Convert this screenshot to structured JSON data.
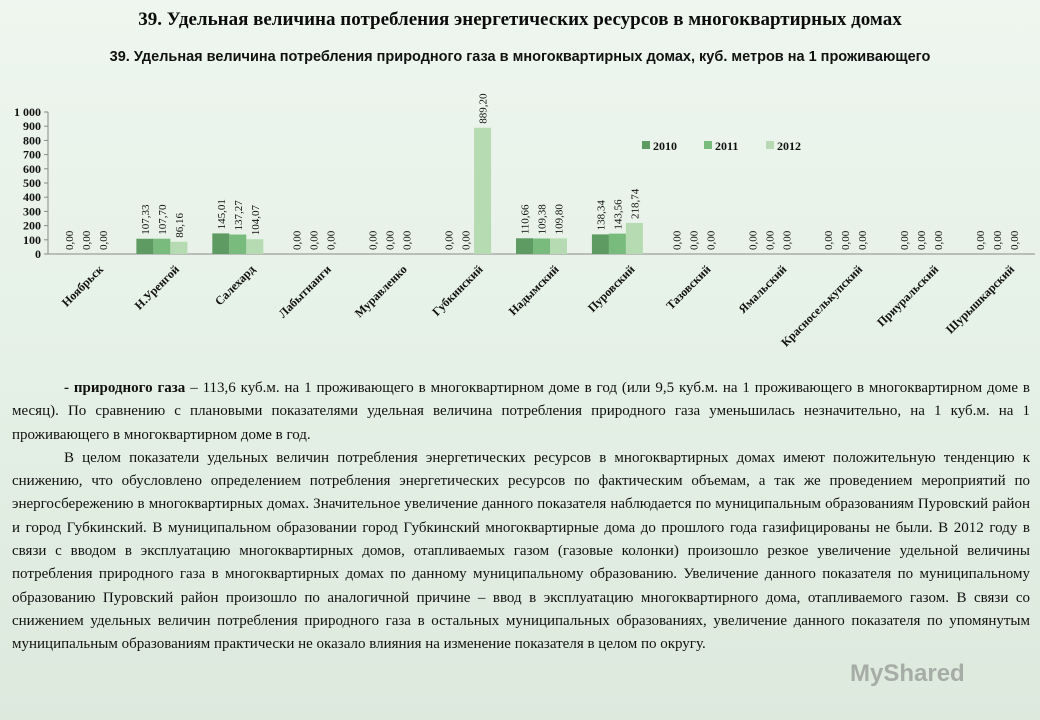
{
  "header": {
    "title": "39. Удельная величина потребления энергетических ресурсов в многоквартирных домах"
  },
  "chart_data": {
    "type": "bar",
    "title": "39. Удельная величина потребления природного газа в многоквартирных домах, куб. метров на 1 проживающего",
    "categories": [
      "Ноябрьск",
      "Н.Уренгой",
      "Салехард",
      "Лабытнанги",
      "Муравленко",
      "Губкинский",
      "Надымский",
      "Пуровский",
      "Тазовский",
      "Ямальский",
      "Красноселькупский",
      "Приуральский",
      "Шурышкарский"
    ],
    "series": [
      {
        "name": "2010",
        "color": "#5e9b62",
        "values": [
          0,
          107.33,
          145.01,
          0,
          0,
          0,
          110.66,
          138.34,
          0,
          0,
          0,
          0,
          0
        ]
      },
      {
        "name": "2011",
        "color": "#79bb7c",
        "values": [
          0,
          107.7,
          137.27,
          0,
          0,
          0,
          109.38,
          143.56,
          0,
          0,
          0,
          0,
          0
        ]
      },
      {
        "name": "2012",
        "color": "#b6dbb2",
        "values": [
          0,
          86.16,
          104.07,
          0,
          0,
          889.2,
          109.8,
          218.74,
          0,
          0,
          0,
          0,
          0
        ]
      }
    ],
    "labels": [
      [
        "0,00",
        "0,00",
        "0,00"
      ],
      [
        "107,33",
        "107,70",
        "86,16"
      ],
      [
        "145,01",
        "137,27",
        "104,07"
      ],
      [
        "0,00",
        "0,00",
        "0,00"
      ],
      [
        "0,00",
        "0,00",
        "0,00"
      ],
      [
        "0,00",
        "0,00",
        "889,20"
      ],
      [
        "110,66",
        "109,38",
        "109,80"
      ],
      [
        "138,34",
        "143,56",
        "218,74"
      ],
      [
        "0,00",
        "0,00",
        "0,00"
      ],
      [
        "0,00",
        "0,00",
        "0,00"
      ],
      [
        "0,00",
        "0,00",
        "0,00"
      ],
      [
        "0,00",
        "0,00",
        "0,00"
      ],
      [
        "0,00",
        "0,00",
        "0,00"
      ]
    ],
    "yticks": [
      0,
      100,
      200,
      300,
      400,
      500,
      600,
      700,
      800,
      900,
      1000
    ],
    "ytick_labels": [
      "0",
      "100",
      "200",
      "300",
      "400",
      "500",
      "600",
      "700",
      "800",
      "900",
      "1 000"
    ],
    "ylim": [
      0,
      1000
    ],
    "legend_position": "top-right",
    "grid": false
  },
  "body": {
    "p1_bold": "- природного газа",
    "p1_rest": " – 113,6 куб.м. на 1 проживающего в многоквартирном доме в год (или 9,5 куб.м. на 1 проживающего в многоквартирном доме в месяц). По сравнению с плановыми показателями удельная величина потребления природного газа уменьшилась незначительно, на 1 куб.м. на 1 проживающего в многоквартирном доме в год.",
    "p2": "В целом показатели удельных величин потребления энергетических ресурсов в многоквартирных домах имеют положительную тенденцию к снижению, что обусловлено определением потребления энергетических ресурсов по фактическим объемам, а так же проведением мероприятий по энергосбережению в многоквартирных домах. Значительное увеличение данного показателя наблюдается по муниципальным образованиям Пуровский район и город Губкинский. В муниципальном образовании город Губкинский многоквартирные дома до прошлого года газифицированы не были. В 2012 году в связи с вводом в эксплуатацию многоквартирных домов, отапливаемых газом (газовые колонки) произошло резкое увеличение удельной величины потребления природного газа в многоквартирных домах по данному муниципальному образованию. Увеличение данного показателя по муниципальному образованию Пуровский район произошло по аналогичной причине – ввод в эксплуатацию многоквартирного дома, отапливаемого газом. В связи со снижением удельных величин потребления природного газа в остальных муниципальных образованиях, увеличение данного показателя по упомянутым муниципальным образованиям практически не оказало влияния на изменение показателя в целом по округу."
  },
  "watermark": "MyShared"
}
